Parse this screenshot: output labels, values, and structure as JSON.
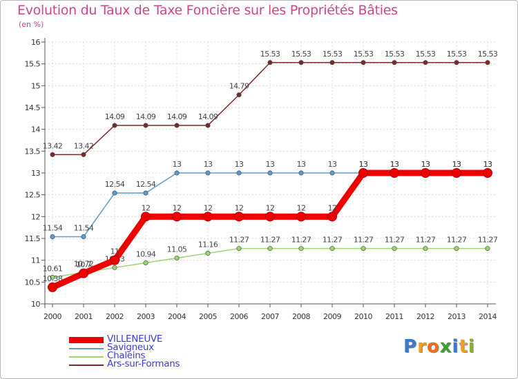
{
  "title": "Evolution du Taux de Taxe Foncière sur les Propriétés Bâties",
  "unit": "(en %)",
  "chart_data": {
    "type": "line",
    "title": "Evolution du Taux de Taxe Foncière sur les Propriétés Bâties",
    "ylabel": "(en %)",
    "xlabel": "",
    "x": [
      "2000",
      "2001",
      "2002",
      "2003",
      "2004",
      "2005",
      "2006",
      "2007",
      "2008",
      "2009",
      "2010",
      "2011",
      "2012",
      "2013",
      "2014"
    ],
    "ylim": [
      10,
      16
    ],
    "yticks": [
      "10",
      "10.5",
      "11",
      "11.5",
      "12",
      "12.5",
      "13",
      "13.5",
      "14",
      "14.5",
      "15",
      "15.5",
      "16"
    ],
    "grid": true,
    "legend": "bottom-left",
    "series": [
      {
        "name": "Ars-sur-Formans",
        "color": "#7a2a2a",
        "values": [
          13.42,
          13.42,
          14.09,
          14.09,
          14.09,
          14.09,
          14.79,
          15.53,
          15.53,
          15.53,
          15.53,
          15.53,
          15.53,
          15.53,
          15.53
        ],
        "labels": [
          "13.42",
          "13.42",
          "14.09",
          "14.09",
          "14.09",
          "14.09",
          "14.79",
          "15.53",
          "15.53",
          "15.53",
          "15.53",
          "15.53",
          "15.53",
          "15.53",
          "15.53"
        ]
      },
      {
        "name": "Savigneux",
        "color": "#5c9bd0",
        "values": [
          11.54,
          11.54,
          12.54,
          12.54,
          13,
          13,
          13,
          13,
          13,
          13,
          13,
          13,
          13,
          13,
          13
        ],
        "labels": [
          "11.54",
          "11.54",
          "12.54",
          "12.54",
          "13",
          "13",
          "13",
          "13",
          "13",
          "13",
          "13",
          "13",
          "13",
          "13",
          "13"
        ]
      },
      {
        "name": "Chaleins",
        "color": "#9ad66e",
        "values": [
          10.61,
          10.72,
          10.83,
          10.94,
          11.05,
          11.16,
          11.27,
          11.27,
          11.27,
          11.27,
          11.27,
          11.27,
          11.27,
          11.27,
          11.27
        ],
        "labels": [
          "10.61",
          "10.72",
          "10.83",
          "10.94",
          "11.05",
          "11.16",
          "11.27",
          "11.27",
          "11.27",
          "11.27",
          "11.27",
          "11.27",
          "11.27",
          "11.27",
          "11.27"
        ]
      },
      {
        "name": "VILLENEUVE",
        "color": "#ee0000",
        "values": [
          10.38,
          10.7,
          11,
          12,
          12,
          12,
          12,
          12,
          12,
          12,
          13,
          13,
          13,
          13,
          13
        ],
        "labels": [
          "10.38",
          "10.7",
          "11",
          "12",
          "12",
          "12",
          "12",
          "12",
          "12",
          "12",
          "13",
          "13",
          "13",
          "13",
          "13"
        ]
      }
    ]
  },
  "legend": [
    {
      "name": "VILLENEUVE",
      "color": "#ee0000"
    },
    {
      "name": "Savigneux",
      "color": "#5c9bd0"
    },
    {
      "name": "Chaleins",
      "color": "#9ad66e"
    },
    {
      "name": "Ars-sur-Formans",
      "color": "#7a2a2a"
    }
  ],
  "logo": {
    "letters": [
      "P",
      "r",
      "o",
      "x",
      "i",
      "t",
      "i"
    ],
    "colors": [
      "#3a7ad0",
      "#f0a020",
      "#f06a20",
      "#3aa030",
      "#3a7ad0",
      "#f0a020",
      "#8ab030"
    ]
  }
}
